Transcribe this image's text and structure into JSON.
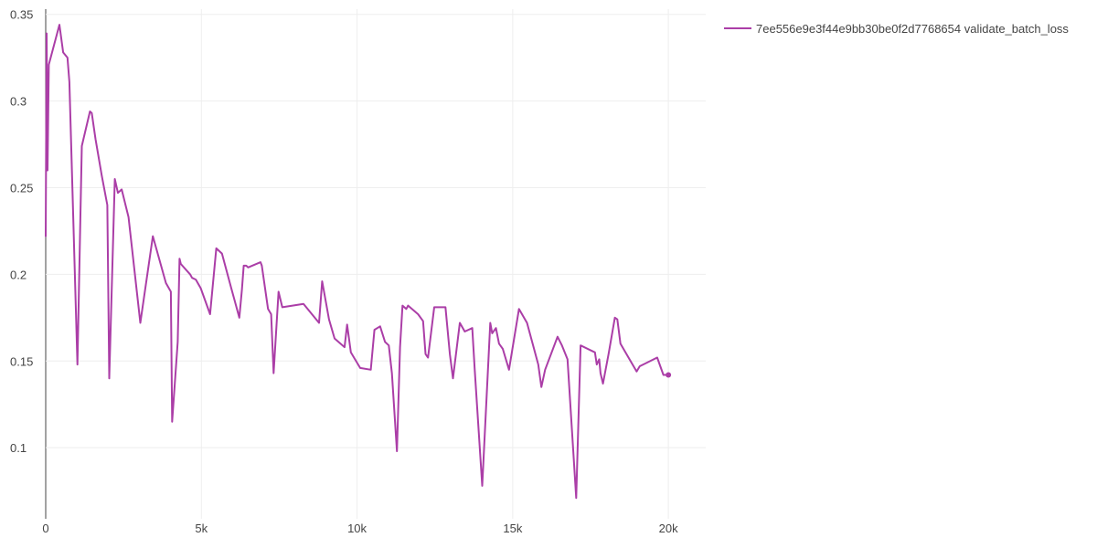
{
  "chart_data": {
    "type": "line",
    "title": "",
    "xlabel": "",
    "ylabel": "",
    "xlim": [
      0,
      21200
    ],
    "ylim": [
      0.059,
      0.353
    ],
    "x_ticks": [
      0,
      5000,
      10000,
      15000,
      20000
    ],
    "x_tick_labels": [
      "0",
      "5k",
      "10k",
      "15k",
      "20k"
    ],
    "y_ticks": [
      0.1,
      0.15,
      0.2,
      0.25,
      0.3,
      0.35
    ],
    "y_tick_labels": [
      "0.1",
      "0.15",
      "0.2",
      "0.25",
      "0.3",
      "0.35"
    ],
    "grid": true,
    "legend_position": "top-right",
    "series": [
      {
        "name": "7ee556e9e3f44e9bb30be0f2d7768654 validate_batch_loss",
        "color": "#ab3ea7",
        "x": [
          0,
          30,
          60,
          100,
          440,
          560,
          700,
          760,
          1020,
          1160,
          1420,
          1480,
          1600,
          1800,
          1980,
          2040,
          2220,
          2320,
          2440,
          2660,
          3040,
          3440,
          3860,
          4020,
          4060,
          4240,
          4300,
          4340,
          4640,
          4700,
          4820,
          4980,
          5280,
          5480,
          5660,
          5960,
          6220,
          6300,
          6360,
          6440,
          6500,
          6900,
          6940,
          7140,
          7240,
          7320,
          7480,
          7600,
          8280,
          8780,
          8880,
          9100,
          9280,
          9600,
          9680,
          9800,
          10100,
          10440,
          10560,
          10740,
          10900,
          11020,
          11120,
          11280,
          11380,
          11460,
          11580,
          11640,
          11960,
          12120,
          12200,
          12280,
          12480,
          12840,
          12980,
          13080,
          13220,
          13300,
          13460,
          13700,
          13780,
          14020,
          14280,
          14340,
          14460,
          14560,
          14680,
          14880,
          15200,
          15460,
          15820,
          15920,
          16040,
          16440,
          16580,
          16760,
          17040,
          17180,
          17640,
          17700,
          17780,
          17820,
          17900,
          18080,
          18280,
          18360,
          18460,
          18980,
          19080,
          19640,
          19840,
          19920,
          20000
        ],
        "y": [
          0.222,
          0.339,
          0.26,
          0.321,
          0.344,
          0.328,
          0.325,
          0.311,
          0.148,
          0.274,
          0.294,
          0.293,
          0.278,
          0.257,
          0.24,
          0.14,
          0.255,
          0.247,
          0.249,
          0.233,
          0.172,
          0.222,
          0.195,
          0.19,
          0.115,
          0.161,
          0.209,
          0.206,
          0.2,
          0.198,
          0.197,
          0.192,
          0.177,
          0.215,
          0.212,
          0.192,
          0.175,
          0.191,
          0.205,
          0.205,
          0.204,
          0.207,
          0.205,
          0.18,
          0.177,
          0.143,
          0.19,
          0.181,
          0.183,
          0.172,
          0.196,
          0.174,
          0.163,
          0.158,
          0.171,
          0.155,
          0.146,
          0.145,
          0.168,
          0.17,
          0.161,
          0.159,
          0.143,
          0.098,
          0.158,
          0.182,
          0.18,
          0.182,
          0.177,
          0.173,
          0.154,
          0.152,
          0.181,
          0.181,
          0.154,
          0.14,
          0.16,
          0.172,
          0.167,
          0.169,
          0.145,
          0.078,
          0.172,
          0.166,
          0.169,
          0.16,
          0.157,
          0.145,
          0.18,
          0.172,
          0.148,
          0.135,
          0.145,
          0.164,
          0.159,
          0.151,
          0.071,
          0.159,
          0.155,
          0.148,
          0.151,
          0.143,
          0.137,
          0.154,
          0.175,
          0.174,
          0.16,
          0.144,
          0.147,
          0.152,
          0.142,
          0.142,
          0.142
        ]
      }
    ]
  }
}
